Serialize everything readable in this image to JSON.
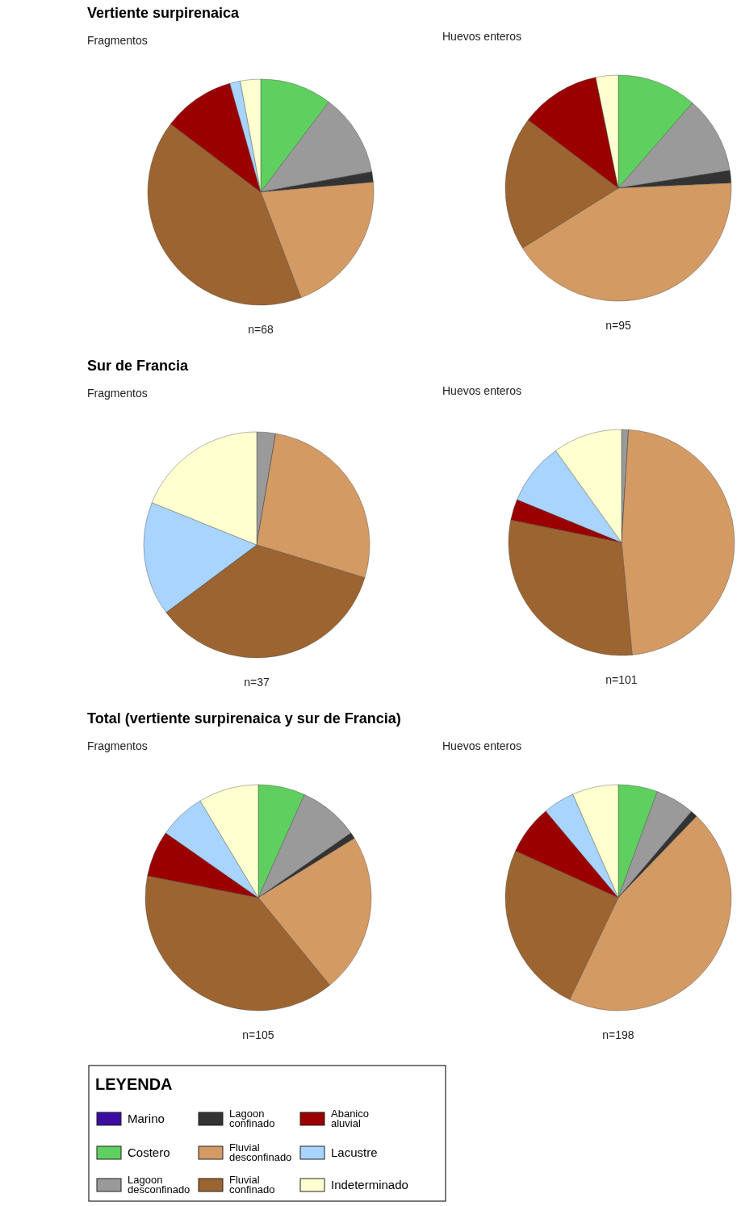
{
  "chart_data": [
    {
      "type": "pie",
      "title": "Vertiente surpirenaica",
      "subtitle": "Fragmentos",
      "annotations": [
        "n=68"
      ],
      "categories": [
        null,
        null,
        null,
        null,
        null,
        null,
        null,
        null,
        null
      ],
      "values": [
        0,
        10.3,
        11.8,
        1.5,
        20.6,
        41.1,
        10.3,
        1.5,
        2.9
      ],
      "colors": [
        "#3a0ca0",
        "#5fcf5f",
        "#9a9a9a",
        "#333333",
        "#d49a64",
        "#9c6430",
        "#9b0000",
        "#a8d4ff",
        "#ffffd0"
      ]
    },
    {
      "type": "pie",
      "subtitle": "Huevos enteros",
      "annotations": [
        "n=95"
      ],
      "categories": [
        null,
        null,
        null,
        null,
        null,
        null,
        null,
        null,
        null
      ],
      "values": [
        0,
        11.4,
        11.1,
        1.8,
        41.8,
        19.2,
        11.5,
        0,
        3.2
      ],
      "colors": [
        "#3a0ca0",
        "#5fcf5f",
        "#9a9a9a",
        "#333333",
        "#d49a64",
        "#9c6430",
        "#9b0000",
        "#a8d4ff",
        "#ffffd0"
      ]
    },
    {
      "type": "pie",
      "title": "Sur de Francia",
      "subtitle": "Fragmentos",
      "annotations": [
        "n=37"
      ],
      "categories": [
        null,
        null,
        null,
        null,
        null,
        null,
        null,
        null,
        null
      ],
      "values": [
        0,
        0,
        2.7,
        0,
        27.0,
        35.1,
        0,
        16.3,
        18.9
      ],
      "colors": [
        "#3a0ca0",
        "#5fcf5f",
        "#9a9a9a",
        "#333333",
        "#d49a64",
        "#9c6430",
        "#9b0000",
        "#a8d4ff",
        "#ffffd0"
      ]
    },
    {
      "type": "pie",
      "subtitle": "Huevos enteros",
      "annotations": [
        "n=101"
      ],
      "categories": [
        null,
        null,
        null,
        null,
        null,
        null,
        null,
        null,
        null
      ],
      "values": [
        0,
        0,
        1.0,
        0,
        47.5,
        29.7,
        3.0,
        8.9,
        9.9
      ],
      "colors": [
        "#3a0ca0",
        "#5fcf5f",
        "#9a9a9a",
        "#333333",
        "#d49a64",
        "#9c6430",
        "#9b0000",
        "#a8d4ff",
        "#ffffd0"
      ]
    },
    {
      "type": "pie",
      "title": "Total (vertiente surpirenaica y sur de Francia)",
      "subtitle": "Fragmentos",
      "annotations": [
        "n=105"
      ],
      "categories": [
        null,
        null,
        null,
        null,
        null,
        null,
        null,
        null,
        null
      ],
      "values": [
        0,
        6.7,
        8.6,
        0.9,
        22.9,
        39.0,
        6.6,
        6.7,
        8.6
      ],
      "colors": [
        "#3a0ca0",
        "#5fcf5f",
        "#9a9a9a",
        "#333333",
        "#d49a64",
        "#9c6430",
        "#9b0000",
        "#a8d4ff",
        "#ffffd0"
      ]
    },
    {
      "type": "pie",
      "subtitle": "Huevos enteros",
      "annotations": [
        "n=198"
      ],
      "legend": "bottom",
      "legend_title": "LEYENDA",
      "categories": [
        "Marino",
        "Costero",
        "Lagoon desconfinado",
        "Lagoon confinado",
        "Fluvial desconfinado",
        "Fluvial confinado",
        "Abanico aluvial",
        "Lacustre",
        "Indeterminado"
      ],
      "values": [
        0,
        5.6,
        5.6,
        1.0,
        44.9,
        24.7,
        7.1,
        4.5,
        6.6
      ],
      "colors": [
        "#3a0ca0",
        "#5fcf5f",
        "#9a9a9a",
        "#333333",
        "#d49a64",
        "#9c6430",
        "#9b0000",
        "#a8d4ff",
        "#ffffd0"
      ]
    }
  ]
}
